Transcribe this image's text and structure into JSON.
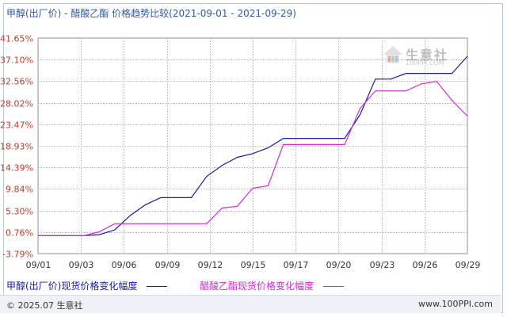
{
  "title": "甲醇(出厂价) - 醋酸乙酯 价格趋势比较(2021-09-01 - 2021-09-29)",
  "watermark": {
    "brand": "生意社",
    "url": "100PPI.COM"
  },
  "footer": {
    "copyright": "© 2025.07 生意社",
    "site": "www.100PPI.com"
  },
  "colors": {
    "series1": "#1a1aa8",
    "series2": "#d12ad1",
    "axis_text": "#c0392b",
    "grid": "#bbbbbb"
  },
  "chart_data": {
    "type": "line",
    "title": "甲醇(出厂价) - 醋酸乙酯 价格趋势比较(2021-09-01 - 2021-09-29)",
    "ylim": [
      -3.79,
      41.65
    ],
    "y_ticks": [
      "41.65%",
      "37.10%",
      "32.56%",
      "28.02%",
      "23.47%",
      "18.93%",
      "14.39%",
      "9.84%",
      "5.30%",
      "0.76%",
      "-3.79%"
    ],
    "y_tick_values": [
      41.65,
      37.1,
      32.56,
      28.02,
      23.47,
      18.93,
      14.39,
      9.84,
      5.3,
      0.76,
      -3.79
    ],
    "x_ticks": [
      "09/01",
      "09/03",
      "09/06",
      "09/09",
      "09/12",
      "09/15",
      "09/17",
      "09/20",
      "09/23",
      "09/26",
      "09/29"
    ],
    "x_day_domain": [
      1,
      29
    ],
    "series": [
      {
        "name": "甲醇(出厂价)现货价格变化幅度",
        "color": "#1a1aa8",
        "days": [
          1,
          4,
          5,
          6,
          7,
          8,
          9,
          10,
          11,
          12,
          13,
          14,
          15,
          16,
          17,
          18,
          19,
          20,
          21,
          22,
          23,
          24,
          25,
          26,
          27,
          28,
          29
        ],
        "values": [
          0.0,
          0.0,
          0.2,
          1.2,
          4.2,
          6.5,
          8.0,
          8.0,
          8.0,
          12.5,
          14.8,
          16.5,
          17.3,
          18.5,
          20.5,
          20.5,
          20.5,
          20.5,
          20.5,
          25.5,
          33.0,
          33.0,
          34.2,
          34.2,
          34.2,
          34.2,
          37.8
        ]
      },
      {
        "name": "醋酸乙酯现货价格变化幅度",
        "color": "#d12ad1",
        "days": [
          1,
          4,
          5,
          6,
          7,
          8,
          9,
          10,
          11,
          12,
          13,
          14,
          15,
          16,
          17,
          18,
          19,
          20,
          21,
          22,
          23,
          24,
          25,
          26,
          27,
          28,
          29
        ],
        "values": [
          0.0,
          0.0,
          0.8,
          2.5,
          2.5,
          2.5,
          2.5,
          2.5,
          2.5,
          2.5,
          5.8,
          6.2,
          10.0,
          10.5,
          19.2,
          19.2,
          19.2,
          19.2,
          19.2,
          26.8,
          30.5,
          30.5,
          30.5,
          32.0,
          32.5,
          28.5,
          25.2
        ]
      }
    ]
  }
}
